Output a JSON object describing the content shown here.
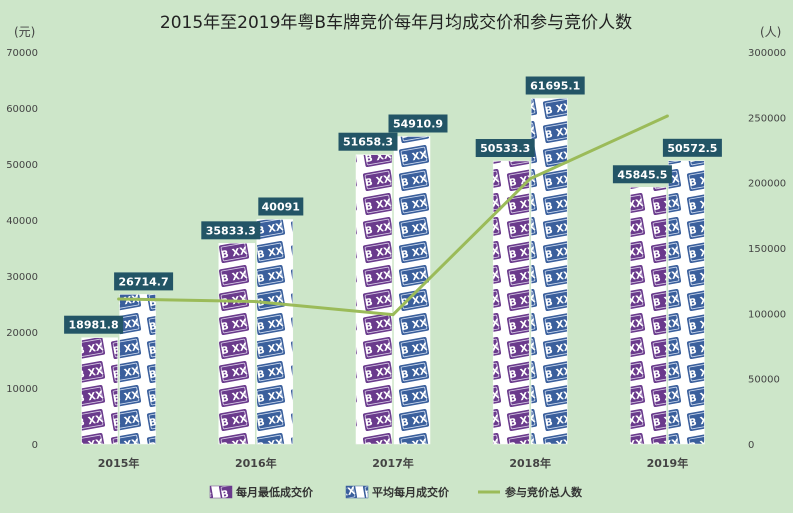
{
  "chart_data": {
    "type": "bar",
    "title": "2015年至2019年粤B车牌竞价每年月均成交价和参与竞价人数",
    "categories": [
      "2015年",
      "2016年",
      "2017年",
      "2018年",
      "2019年"
    ],
    "y_left": {
      "unit": "(元)",
      "range": [
        0,
        70000
      ],
      "ticks": [
        0,
        10000,
        20000,
        30000,
        40000,
        50000,
        60000,
        70000
      ]
    },
    "y_right": {
      "unit": "(人)",
      "range": [
        0,
        300000
      ],
      "ticks": [
        0,
        50000,
        100000,
        150000,
        200000,
        250000,
        300000
      ]
    },
    "series": [
      {
        "name": "每月最低成交价",
        "type": "bar",
        "axis": "left",
        "color": "#6a3a8c",
        "values": [
          18981.8,
          35833.3,
          51658.3,
          50533.3,
          45845.5
        ],
        "labels": [
          "18981.8",
          "35833.3",
          "51658.3",
          "50533.3",
          "45845.5"
        ]
      },
      {
        "name": "平均每月成交价",
        "type": "bar",
        "axis": "left",
        "color": "#3a5f9c",
        "values": [
          26714.7,
          40091,
          54910.9,
          61695.1,
          50572.5
        ],
        "labels": [
          "26714.7",
          "40091",
          "54910.9",
          "61695.1",
          "50572.5"
        ]
      },
      {
        "name": "参与竞价总人数",
        "type": "line",
        "axis": "right",
        "color": "#9bbb59",
        "values": [
          111000,
          109000,
          99000,
          203000,
          251000
        ]
      }
    ],
    "plate_text": "粤B XX",
    "label_bg": "#235566",
    "grid": false,
    "legend": "bottom"
  }
}
